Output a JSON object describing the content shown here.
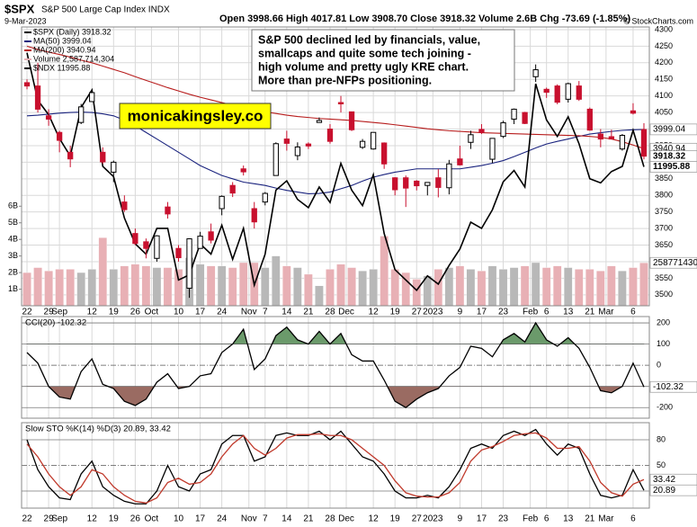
{
  "chart_data": [
    {
      "type": "candlestick",
      "title": "$SPX",
      "subtitle": "S&P 500 Large Cap Index INDX",
      "date": "9-Mar-2023",
      "quote": "Open 3998.66 High 4017.81 Low 3908.70 Close 3918.32 Volume 2.6B Chg -73.69 (-1.85%)",
      "copyright": "© StockCharts.com",
      "annotation": [
        "S&P 500 declined led by financials, value,",
        "smallcaps and quite some tech joining -",
        "high volume and pretty ugly KRE chart.",
        "More than pre-NFPs positioning."
      ],
      "watermark": "monicakingsley.co",
      "xlim": [
        -0.5,
        57.5
      ],
      "xticks": [
        {
          "value": 0,
          "label": "22"
        },
        {
          "value": 2,
          "label": "29"
        },
        {
          "value": 3,
          "label": "Sep"
        },
        {
          "value": 6,
          "label": "12"
        },
        {
          "value": 8,
          "label": "19"
        },
        {
          "value": 10,
          "label": "26"
        },
        {
          "value": 11.5,
          "label": "Oct"
        },
        {
          "value": 14,
          "label": "10"
        },
        {
          "value": 16,
          "label": "17"
        },
        {
          "value": 18,
          "label": "24"
        },
        {
          "value": 20.5,
          "label": "Nov"
        },
        {
          "value": 22,
          "label": "7"
        },
        {
          "value": 24,
          "label": "14"
        },
        {
          "value": 26,
          "label": "21"
        },
        {
          "value": 28,
          "label": "28"
        },
        {
          "value": 29.5,
          "label": "Dec"
        },
        {
          "value": 32,
          "label": "12"
        },
        {
          "value": 34,
          "label": "19"
        },
        {
          "value": 36,
          "label": "27"
        },
        {
          "value": 37.5,
          "label": "2023"
        },
        {
          "value": 40,
          "label": "9"
        },
        {
          "value": 42,
          "label": "17"
        },
        {
          "value": 44,
          "label": "23"
        },
        {
          "value": 46.5,
          "label": "Feb"
        },
        {
          "value": 48,
          "label": "6"
        },
        {
          "value": 50,
          "label": "13"
        },
        {
          "value": 52,
          "label": "21"
        },
        {
          "value": 53.5,
          "label": "Mar"
        },
        {
          "value": 56,
          "label": "6"
        }
      ],
      "ylim": [
        3467,
        4308
      ],
      "yticks": [
        3500,
        3550,
        3600,
        3650,
        3700,
        3750,
        3800,
        3850,
        3900,
        3950,
        4000,
        4050,
        4100,
        4150,
        4200,
        4250,
        4300
      ],
      "y2lim": [
        0,
        16800000000
      ],
      "y2ticks": [
        {
          "value": 1000000000,
          "label": "1B"
        },
        {
          "value": 2000000000,
          "label": "2B"
        },
        {
          "value": 3000000000,
          "label": "3B"
        },
        {
          "value": 4000000000,
          "label": "4B"
        },
        {
          "value": 5000000000,
          "label": "5B"
        },
        {
          "value": 6000000000,
          "label": "6B"
        }
      ],
      "y3lim": [
        10650,
        13350
      ],
      "grid": true,
      "series": [
        {
          "name": "$SPX (Daily) 3918.32",
          "color": "#000000",
          "down_color": "#c8102e",
          "open": [
            4140,
            4130,
            4040,
            3990,
            3930,
            4020,
            4083,
            3930,
            3870,
            3780,
            3685,
            3660,
            3610,
            3765,
            3640,
            3520,
            3640,
            3690,
            3760,
            3830,
            3880,
            3760,
            3780,
            3860,
            3970,
            3920,
            3955,
            4020,
            4000,
            4080,
            4052,
            3945,
            3940,
            3958,
            3853,
            3853,
            3843,
            3830,
            3853,
            3823,
            3910,
            3960,
            3999,
            3909,
            3978,
            4030,
            4050,
            4158,
            4120,
            4130,
            4090,
            4130,
            4060,
            3985,
            3977,
            3940,
            4055,
            3998.66
          ],
          "high": [
            4150,
            4200,
            4060,
            3995,
            3950,
            4076,
            4119,
            3945,
            3905,
            3800,
            3700,
            3670,
            3680,
            3780,
            3650,
            3670,
            3690,
            3715,
            3800,
            3840,
            3890,
            3780,
            3810,
            3960,
            3995,
            3960,
            3960,
            4035,
            4015,
            4100,
            4053,
            3970,
            3990,
            3960,
            3855,
            3860,
            3846,
            3840,
            3879,
            3907,
            3950,
            3995,
            4015,
            3973,
            4025,
            4062,
            4052,
            4195,
            4125,
            4135,
            4140,
            4145,
            4065,
            4000,
            3998,
            3985,
            4078,
            4017.81
          ],
          "low": [
            4120,
            4050,
            4010,
            3930,
            3885,
            4015,
            4083,
            3895,
            3840,
            3750,
            3650,
            3610,
            3600,
            3730,
            3600,
            3491,
            3640,
            3655,
            3740,
            3795,
            3860,
            3700,
            3770,
            3860,
            3935,
            3906,
            3940,
            4020,
            3956,
            4050,
            3994,
            3940,
            3938,
            3880,
            3800,
            3765,
            3815,
            3800,
            3794,
            3803,
            3890,
            3940,
            3985,
            3898,
            3973,
            4015,
            4015,
            4142,
            4094,
            4075,
            4080,
            4085,
            3995,
            3945,
            3970,
            3935,
            4044,
            3908.7
          ],
          "close": [
            4130,
            4060,
            4030,
            3966,
            3910,
            4067,
            4110,
            3901,
            3900,
            3757,
            3655,
            3640,
            3678,
            3744,
            3612,
            3669,
            3677,
            3665,
            3797,
            3807,
            3871,
            3720,
            3806,
            3956,
            3957,
            3946,
            3949,
            4026,
            3963,
            4076,
            3998,
            3963,
            3990,
            3895,
            3817,
            3822,
            3829,
            3839,
            3824,
            3895,
            3892,
            3983,
            3990,
            3972,
            4019,
            4060,
            4017,
            4179,
            4111,
            4081,
            4137,
            4090,
            3997,
            3970,
            3970,
            3981,
            4048,
            3918.32
          ]
        },
        {
          "name": "MA(50) 3999.04",
          "color": "#1a237e",
          "values": [
            4040,
            4042,
            4045,
            4048,
            4050,
            4051,
            4050,
            4046,
            4040,
            4027,
            4010,
            3990,
            3970,
            3950,
            3930,
            3910,
            3890,
            3875,
            3860,
            3850,
            3840,
            3835,
            3830,
            3822,
            3815,
            3810,
            3805,
            3806,
            3810,
            3820,
            3830,
            3843,
            3855,
            3863,
            3870,
            3875,
            3880,
            3880,
            3880,
            3880,
            3880,
            3885,
            3890,
            3897,
            3905,
            3917,
            3930,
            3943,
            3955,
            3963,
            3970,
            3978,
            3985,
            3989,
            3993,
            3996,
            3998,
            3999.04
          ]
        },
        {
          "name": "MA(200) 3940.94",
          "color": "#b71c1c",
          "values": [
            4250,
            4240,
            4232,
            4225,
            4217,
            4208,
            4200,
            4190,
            4180,
            4170,
            4158,
            4147,
            4136,
            4125,
            4115,
            4105,
            4096,
            4088,
            4080,
            4072,
            4065,
            4058,
            4052,
            4047,
            4042,
            4038,
            4035,
            4032,
            4030,
            4028,
            4026,
            4023,
            4020,
            4017,
            4013,
            4009,
            4005,
            4001,
            3998,
            3995,
            3993,
            3991,
            3989,
            3988,
            3987,
            3986,
            3985,
            3984,
            3983,
            3982,
            3981,
            3980,
            3978,
            3975,
            3970,
            3962,
            3952,
            3940.94
          ]
        },
        {
          "name": "Volume 2,587,714,304",
          "color": "#e8b0b5",
          "up_color": "#b8b8b8",
          "axis": "y2",
          "values": [
            2000000000,
            2300000000,
            2100000000,
            2200000000,
            2200000000,
            2000000000,
            2200000000,
            4100000000,
            2200000000,
            2400000000,
            2500000000,
            2400000000,
            2300000000,
            2300000000,
            2200000000,
            2900000000,
            2500000000,
            2400000000,
            2400000000,
            2300000000,
            2600000000,
            2600000000,
            2300000000,
            3000000000,
            2400000000,
            2300000000,
            1900000000,
            1200000000,
            2200000000,
            2500000000,
            2300000000,
            2100000000,
            2200000000,
            4200000000,
            2200000000,
            2000000000,
            1600000000,
            1800000000,
            2200000000,
            2300000000,
            2400000000,
            2200000000,
            2100000000,
            2400000000,
            2200000000,
            2300000000,
            2400000000,
            2600000000,
            2300000000,
            2400000000,
            2300000000,
            2200000000,
            2200000000,
            2100000000,
            2400000000,
            2100000000,
            2300000000,
            2587714304
          ]
        },
        {
          "name": "$NDX 11995.88",
          "color": "#000000",
          "axis": "y3",
          "values": [
            13100,
            12640,
            12500,
            12270,
            12100,
            12570,
            12740,
            12000,
            11900,
            11500,
            11250,
            11150,
            11400,
            11400,
            10900,
            10950,
            11250,
            11150,
            11430,
            11100,
            11400,
            10850,
            11150,
            11770,
            11860,
            11680,
            11600,
            11800,
            11650,
            12030,
            11770,
            11620,
            11920,
            11350,
            11000,
            10900,
            10800,
            10940,
            10860,
            11040,
            11200,
            11460,
            11400,
            11580,
            11850,
            11960,
            11800,
            12800,
            12450,
            12290,
            12480,
            12220,
            11880,
            11840,
            11950,
            12000,
            12350,
            11995.88
          ]
        }
      ]
    },
    {
      "type": "line",
      "legend_text": "CCI(20) -102.32",
      "xlim": [
        -0.5,
        57.5
      ],
      "ylim": [
        -250,
        230
      ],
      "yticks": [
        200,
        100,
        0,
        -100,
        -200
      ],
      "fill_levels": [
        100,
        -100
      ],
      "fill_colors": [
        "#6b9a6b",
        "#9a6b62"
      ],
      "series": [
        {
          "color": "#000000",
          "values": [
            60,
            10,
            -100,
            -150,
            -160,
            -30,
            30,
            -90,
            -110,
            -170,
            -190,
            -160,
            -80,
            -40,
            -110,
            -100,
            -50,
            -40,
            60,
            100,
            170,
            -20,
            30,
            140,
            180,
            120,
            100,
            160,
            100,
            150,
            50,
            20,
            20,
            -70,
            -170,
            -200,
            -160,
            -130,
            -110,
            -50,
            -10,
            90,
            80,
            40,
            120,
            150,
            110,
            200,
            120,
            90,
            130,
            80,
            -10,
            -120,
            -130,
            -100,
            10,
            -102.32
          ]
        }
      ]
    },
    {
      "type": "line",
      "legend_text": "Slow STO %K(14) %D(3) 20.89, 33.42",
      "xlim": [
        -0.5,
        57.5
      ],
      "xticks": [
        {
          "value": 0,
          "label": "22"
        },
        {
          "value": 2,
          "label": "29"
        },
        {
          "value": 3,
          "label": "Sep"
        },
        {
          "value": 6,
          "label": "12"
        },
        {
          "value": 8,
          "label": "19"
        },
        {
          "value": 10,
          "label": "26"
        },
        {
          "value": 11.5,
          "label": "Oct"
        },
        {
          "value": 14,
          "label": "10"
        },
        {
          "value": 16,
          "label": "17"
        },
        {
          "value": 18,
          "label": "24"
        },
        {
          "value": 20.5,
          "label": "Nov"
        },
        {
          "value": 22,
          "label": "7"
        },
        {
          "value": 24,
          "label": "14"
        },
        {
          "value": 26,
          "label": "21"
        },
        {
          "value": 28,
          "label": "28"
        },
        {
          "value": 29.5,
          "label": "Dec"
        },
        {
          "value": 32,
          "label": "12"
        },
        {
          "value": 34,
          "label": "19"
        },
        {
          "value": 36,
          "label": "27"
        },
        {
          "value": 37.5,
          "label": "2023"
        },
        {
          "value": 40,
          "label": "9"
        },
        {
          "value": 42,
          "label": "17"
        },
        {
          "value": 44,
          "label": "23"
        },
        {
          "value": 46.5,
          "label": "Feb"
        },
        {
          "value": 48,
          "label": "6"
        },
        {
          "value": 50,
          "label": "13"
        },
        {
          "value": 52,
          "label": "21"
        },
        {
          "value": 53.5,
          "label": "Mar"
        },
        {
          "value": 56,
          "label": "6"
        }
      ],
      "ylim": [
        0,
        100
      ],
      "yticks": [
        80,
        50,
        20
      ],
      "series": [
        {
          "color": "#000000",
          "values": [
            80,
            45,
            25,
            12,
            10,
            40,
            55,
            25,
            15,
            8,
            5,
            5,
            20,
            50,
            25,
            20,
            40,
            45,
            75,
            85,
            85,
            55,
            60,
            85,
            88,
            85,
            85,
            90,
            80,
            90,
            75,
            60,
            55,
            40,
            20,
            12,
            12,
            15,
            12,
            25,
            45,
            70,
            75,
            70,
            85,
            90,
            85,
            92,
            75,
            62,
            75,
            70,
            40,
            15,
            12,
            15,
            45,
            20.89
          ]
        },
        {
          "color": "#c0392b",
          "values": [
            75,
            60,
            40,
            25,
            15,
            25,
            45,
            40,
            25,
            15,
            8,
            6,
            12,
            30,
            35,
            28,
            30,
            40,
            60,
            75,
            85,
            70,
            62,
            70,
            82,
            86,
            86,
            87,
            85,
            85,
            80,
            70,
            60,
            50,
            32,
            18,
            14,
            13,
            13,
            18,
            30,
            55,
            68,
            72,
            78,
            85,
            87,
            88,
            82,
            70,
            70,
            72,
            55,
            30,
            18,
            14,
            28,
            33.42
          ]
        }
      ]
    }
  ]
}
